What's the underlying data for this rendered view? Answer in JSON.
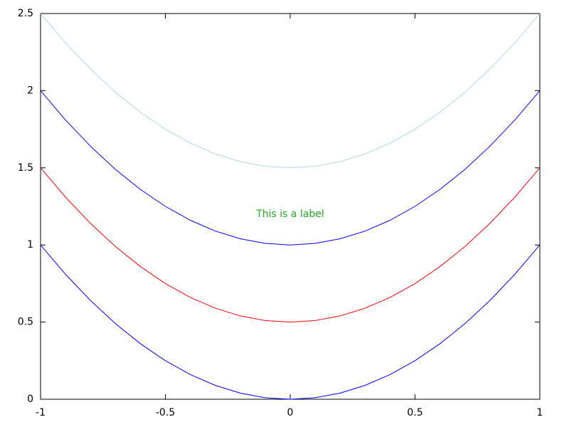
{
  "chart_data": {
    "type": "line",
    "x": [
      -1,
      -0.9,
      -0.8,
      -0.7,
      -0.6,
      -0.5,
      -0.4,
      -0.3,
      -0.2,
      -0.1,
      0,
      0.1,
      0.2,
      0.3,
      0.4,
      0.5,
      0.6,
      0.7,
      0.8,
      0.9,
      1
    ],
    "series": [
      {
        "color": "#0000ff",
        "values": [
          1,
          0.81,
          0.64,
          0.49,
          0.36,
          0.25,
          0.16,
          0.09,
          0.04,
          0.01,
          0,
          0.01,
          0.04,
          0.09,
          0.16,
          0.25,
          0.36,
          0.49,
          0.64,
          0.81,
          1
        ]
      },
      {
        "color": "#ff0000",
        "values": [
          1.5,
          1.31,
          1.14,
          0.99,
          0.86,
          0.75,
          0.66,
          0.59,
          0.54,
          0.51,
          0.5,
          0.51,
          0.54,
          0.59,
          0.66,
          0.75,
          0.86,
          0.99,
          1.14,
          1.31,
          1.5
        ]
      },
      {
        "color": "#0000ff",
        "values": [
          2,
          1.81,
          1.64,
          1.49,
          1.36,
          1.25,
          1.16,
          1.09,
          1.04,
          1.01,
          1,
          1.01,
          1.04,
          1.09,
          1.16,
          1.25,
          1.36,
          1.49,
          1.64,
          1.81,
          2
        ]
      },
      {
        "color": "#add8e6",
        "values": [
          2.5,
          2.31,
          2.14,
          1.99,
          1.86,
          1.75,
          1.66,
          1.59,
          1.54,
          1.51,
          1.5,
          1.51,
          1.54,
          1.59,
          1.66,
          1.75,
          1.86,
          1.99,
          2.14,
          2.31,
          2.5
        ]
      }
    ],
    "xlim": [
      -1,
      1
    ],
    "xticks": [
      -1,
      -0.5,
      0,
      0.5,
      1
    ],
    "ylim": [
      0,
      2.5
    ],
    "yticks": [
      0,
      0.5,
      1,
      1.5,
      2,
      2.5
    ],
    "grid": false,
    "annotations": [
      {
        "text": "This is a label",
        "x": 0,
        "y": 1.2,
        "color": "#22aa22"
      }
    ]
  }
}
